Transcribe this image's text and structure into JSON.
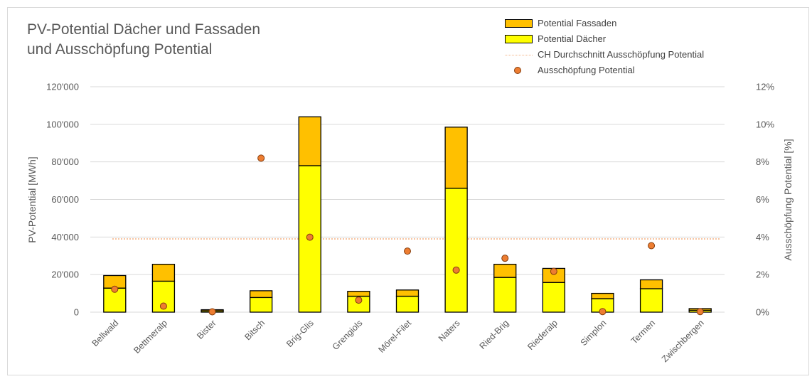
{
  "title_line1": "PV-Potential Dächer und Fassaden",
  "title_line2": "und Ausschöpfung Potential",
  "legend": {
    "fassaden": "Potential Fassaden",
    "daecher": "Potential Dächer",
    "ch": "CH Durchschnitt Ausschöpfung Potential",
    "ausschoepfung": "Ausschöpfung Potential"
  },
  "colors": {
    "fassaden": "#ffc000",
    "daecher": "#ffff00",
    "bar_border": "#000000",
    "marker": "#ed7d31",
    "marker_border": "#843c0c",
    "ch_line": "#f4b183",
    "grid": "#d9d9d9",
    "axis_text": "#595959"
  },
  "chart_data": {
    "type": "bar",
    "stacked": true,
    "categories": [
      "Bellwald",
      "Bettmeralp",
      "Bister",
      "Bitsch",
      "Brig-Glis",
      "Grengiols",
      "Mörel-Filet",
      "Naters",
      "Ried-Brig",
      "Riederalp",
      "Simplon",
      "Termen",
      "Zwischbergen"
    ],
    "series": [
      {
        "name": "Potential Dächer",
        "axis": "left",
        "values": [
          12800,
          16500,
          700,
          7800,
          78000,
          8500,
          8500,
          66000,
          18500,
          15800,
          7200,
          12500,
          1000
        ]
      },
      {
        "name": "Potential Fassaden",
        "axis": "left",
        "values": [
          6700,
          9000,
          600,
          3600,
          26000,
          2600,
          3300,
          32500,
          7000,
          7500,
          2800,
          4700,
          900
        ]
      },
      {
        "name": "Ausschöpfung Potential",
        "type": "scatter",
        "axis": "right",
        "values": [
          0.0122,
          0.0032,
          0.0002,
          0.082,
          0.0399,
          0.0064,
          0.0325,
          0.0224,
          0.0287,
          0.0217,
          0.0003,
          0.0354,
          0.0003
        ]
      },
      {
        "name": "CH Durchschnitt Ausschöpfung Potential",
        "type": "line",
        "axis": "right",
        "value": 0.039
      }
    ],
    "ylabel": "PV-Potential [MWh]",
    "y2label": "Ausschöpfung Potential [%]",
    "ylim": [
      0,
      120000
    ],
    "y2lim": [
      0,
      0.12
    ],
    "yticks": [
      "0",
      "20'000",
      "40'000",
      "60'000",
      "80'000",
      "100'000",
      "120'000"
    ],
    "y2ticks": [
      "0%",
      "2%",
      "4%",
      "6%",
      "8%",
      "10%",
      "12%"
    ],
    "grid": true,
    "legend_position": "top-right"
  }
}
